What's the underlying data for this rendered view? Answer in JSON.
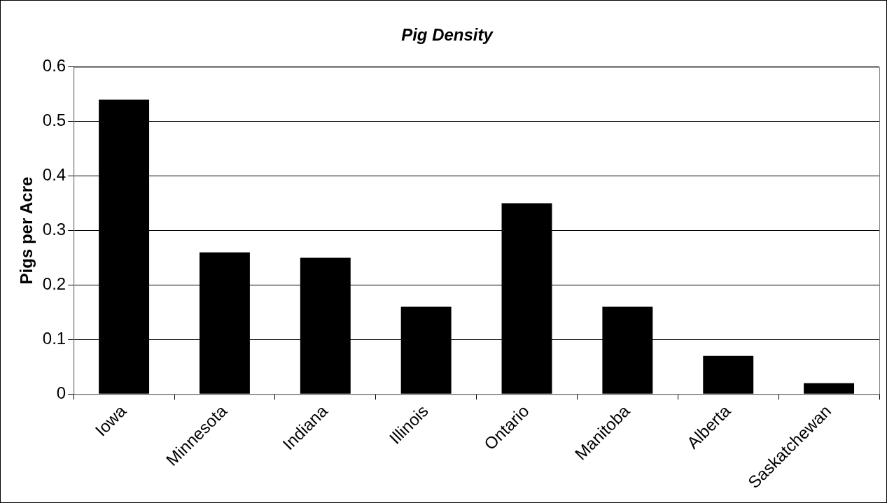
{
  "chart_data": {
    "type": "bar",
    "title": "Pig Density",
    "ylabel": "Pigs per Acre",
    "categories": [
      "Iowa",
      "Minnesota",
      "Indiana",
      "Illinois",
      "Ontario",
      "Manitoba",
      "Alberta",
      "Saskatchewan"
    ],
    "values": [
      0.54,
      0.26,
      0.25,
      0.16,
      0.35,
      0.16,
      0.07,
      0.02
    ],
    "color": "#000000",
    "ylim": [
      0,
      0.6
    ],
    "yticks": [
      0,
      0.1,
      0.2,
      0.3,
      0.4,
      0.5,
      0.6
    ],
    "grid": "y"
  }
}
